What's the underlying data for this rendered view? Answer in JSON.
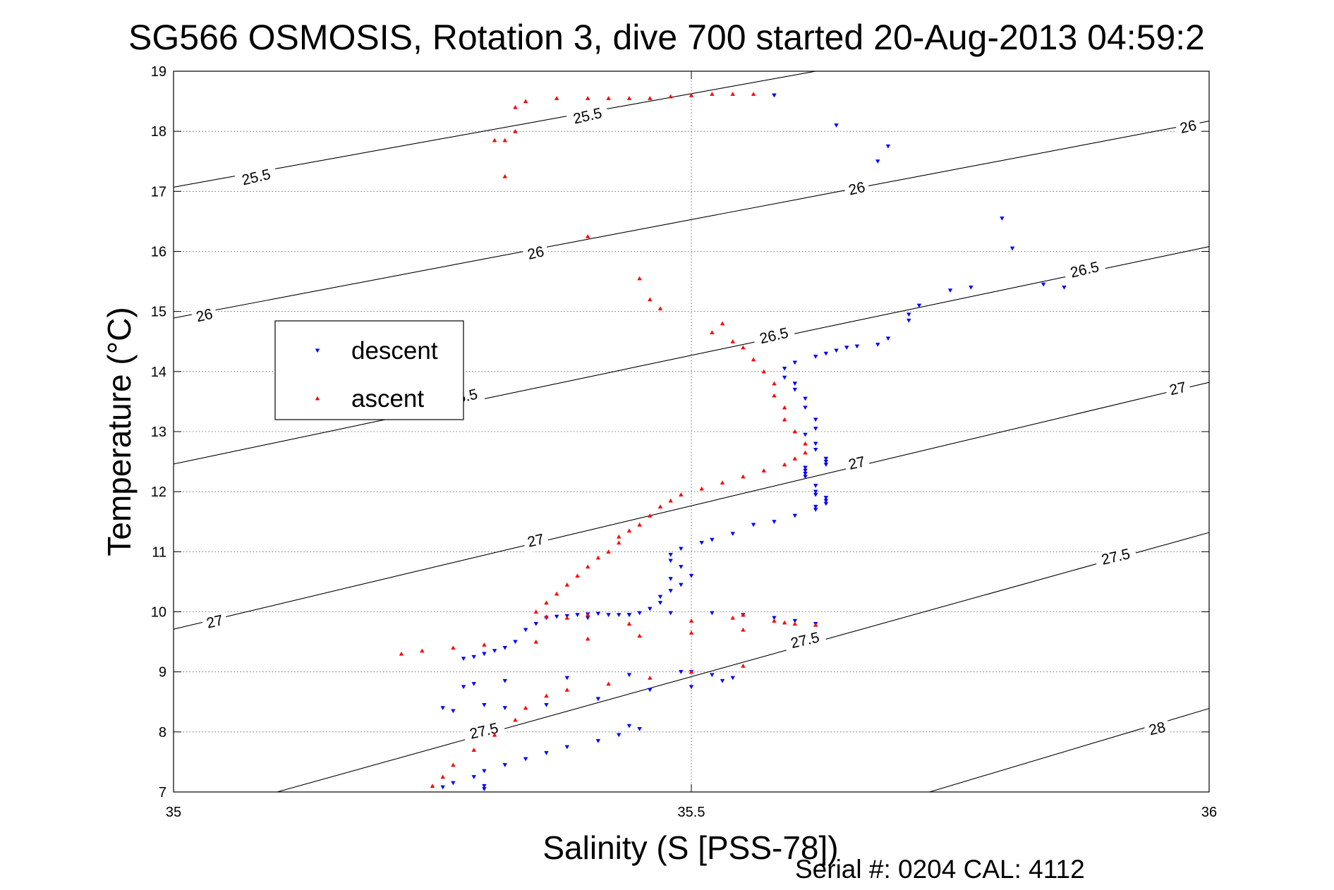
{
  "chart_data": {
    "type": "scatter",
    "title": "SG566 OSMOSIS, Rotation 3, dive 700 started 20-Aug-2013 04:59:2",
    "xlabel": "Salinity (S [PSS-78])",
    "ylabel": "Temperature (°C)",
    "xlim": [
      35,
      36
    ],
    "ylim": [
      7,
      19
    ],
    "xticks": [
      35,
      35.5,
      36
    ],
    "xtick_labels": [
      "35",
      "35.5",
      "36"
    ],
    "yticks": [
      7,
      8,
      9,
      10,
      11,
      12,
      13,
      14,
      15,
      16,
      17,
      18,
      19
    ],
    "ytick_labels": [
      "7",
      "8",
      "9",
      "10",
      "11",
      "12",
      "13",
      "14",
      "15",
      "16",
      "17",
      "18",
      "19"
    ],
    "grid": true,
    "legend_position": "upper-left",
    "footer": "Serial #: 0204  CAL: 4112",
    "density_contours": [
      {
        "label": "25.5",
        "x": [
          35.0,
          35.62
        ],
        "y": [
          17.07,
          19.0
        ]
      },
      {
        "label": "26",
        "x": [
          35.0,
          36.0
        ],
        "y": [
          14.89,
          18.17
        ]
      },
      {
        "label": "26.5",
        "x": [
          35.0,
          36.0
        ],
        "y": [
          12.46,
          16.08
        ]
      },
      {
        "label": "27",
        "x": [
          35.0,
          36.0
        ],
        "y": [
          9.71,
          13.82
        ]
      },
      {
        "label": "27.5",
        "x": [
          35.1,
          36.0
        ],
        "y": [
          7.0,
          11.32
        ]
      },
      {
        "label": "28",
        "x": [
          35.73,
          36.0
        ],
        "y": [
          7.0,
          8.39
        ]
      }
    ],
    "contour_labels": [
      {
        "text": "25.5",
        "x": 35.4,
        "y": 18.24
      },
      {
        "text": "25.5",
        "x": 35.08,
        "y": 17.22
      },
      {
        "text": "26",
        "x": 35.98,
        "y": 18.06
      },
      {
        "text": "26",
        "x": 35.66,
        "y": 17.03
      },
      {
        "text": "26",
        "x": 35.35,
        "y": 15.96
      },
      {
        "text": "26",
        "x": 35.03,
        "y": 14.92
      },
      {
        "text": "26.5",
        "x": 35.88,
        "y": 15.68
      },
      {
        "text": "26.5",
        "x": 35.58,
        "y": 14.58
      },
      {
        "text": "26.5",
        "x": 35.28,
        "y": 13.56
      },
      {
        "text": "27",
        "x": 35.97,
        "y": 13.7
      },
      {
        "text": "27",
        "x": 35.66,
        "y": 12.46
      },
      {
        "text": "27",
        "x": 35.35,
        "y": 11.17
      },
      {
        "text": "27",
        "x": 35.04,
        "y": 9.82
      },
      {
        "text": "27.5",
        "x": 35.91,
        "y": 10.9
      },
      {
        "text": "27.5",
        "x": 35.61,
        "y": 9.51
      },
      {
        "text": "27.5",
        "x": 35.3,
        "y": 8.0
      },
      {
        "text": "28",
        "x": 35.95,
        "y": 8.04
      }
    ],
    "series": [
      {
        "name": "descent",
        "color": "#0000ff",
        "marker": "triangle-down",
        "x": [
          35.58,
          35.58,
          35.58,
          35.64,
          35.69,
          35.68,
          35.8,
          35.81,
          35.84,
          35.86,
          35.77,
          35.75,
          35.72,
          35.71,
          35.71,
          35.69,
          35.68,
          35.66,
          35.65,
          35.64,
          35.63,
          35.62,
          35.6,
          35.59,
          35.59,
          35.6,
          35.6,
          35.61,
          35.61,
          35.62,
          35.62,
          35.61,
          35.62,
          35.62,
          35.63,
          35.63,
          35.63,
          35.61,
          35.61,
          35.61,
          35.61,
          35.62,
          35.62,
          35.62,
          35.63,
          35.63,
          35.63,
          35.62,
          35.62,
          35.6,
          35.58,
          35.56,
          35.54,
          35.52,
          35.51,
          35.49,
          35.48,
          35.48,
          35.49,
          35.5,
          35.48,
          35.49,
          35.48,
          35.47,
          35.47,
          35.46,
          35.45,
          35.44,
          35.43,
          35.42,
          35.41,
          35.4,
          35.39,
          35.38,
          35.37,
          35.36,
          35.35,
          35.34,
          35.33,
          35.32,
          35.31,
          35.3,
          35.29,
          35.28,
          35.4,
          35.44,
          35.48,
          35.52,
          35.55,
          35.58,
          35.6,
          35.62,
          35.5,
          35.44,
          35.38,
          35.32,
          35.29,
          35.28,
          35.3,
          35.26,
          35.27,
          35.49,
          35.52,
          35.54,
          35.53,
          35.5,
          35.46,
          35.41,
          35.36,
          35.32,
          35.44,
          35.45,
          35.43,
          35.41,
          35.38,
          35.36,
          35.34,
          35.32,
          35.3,
          35.29,
          35.27,
          35.26,
          35.3,
          35.3
        ],
        "y": [
          18.6,
          18.6,
          18.6,
          18.1,
          17.75,
          17.5,
          16.55,
          16.05,
          15.45,
          15.4,
          15.4,
          15.35,
          15.1,
          14.95,
          14.85,
          14.55,
          14.45,
          14.42,
          14.4,
          14.35,
          14.3,
          14.25,
          14.15,
          14.05,
          13.9,
          13.8,
          13.7,
          13.55,
          13.4,
          13.2,
          13.05,
          12.95,
          12.8,
          12.7,
          12.55,
          12.5,
          12.45,
          12.4,
          12.35,
          12.3,
          12.25,
          12.1,
          12.0,
          11.95,
          11.9,
          11.85,
          11.8,
          11.75,
          11.7,
          11.6,
          11.5,
          11.45,
          11.3,
          11.2,
          11.15,
          11.05,
          10.95,
          10.85,
          10.75,
          10.6,
          10.55,
          10.45,
          10.35,
          10.25,
          10.15,
          10.05,
          9.98,
          9.95,
          9.95,
          9.95,
          9.97,
          9.96,
          9.95,
          9.93,
          9.92,
          9.9,
          9.8,
          9.7,
          9.5,
          9.4,
          9.35,
          9.3,
          9.25,
          9.22,
          9.9,
          9.95,
          9.98,
          9.98,
          9.95,
          9.9,
          9.85,
          9.8,
          9.0,
          8.95,
          8.9,
          8.85,
          8.8,
          8.75,
          8.45,
          8.4,
          8.35,
          9.0,
          8.95,
          8.9,
          8.85,
          8.75,
          8.7,
          8.55,
          8.45,
          8.4,
          8.1,
          8.05,
          7.95,
          7.85,
          7.75,
          7.65,
          7.55,
          7.45,
          7.35,
          7.25,
          7.15,
          7.08,
          7.1,
          7.05
        ]
      },
      {
        "name": "ascent",
        "color": "#ff0000",
        "marker": "triangle-up",
        "x": [
          35.56,
          35.54,
          35.52,
          35.5,
          35.48,
          35.46,
          35.44,
          35.42,
          35.4,
          35.37,
          35.34,
          35.33,
          35.33,
          35.32,
          35.31,
          35.32,
          35.4,
          35.45,
          35.46,
          35.47,
          35.53,
          35.52,
          35.54,
          35.55,
          35.56,
          35.57,
          35.58,
          35.58,
          35.59,
          35.59,
          35.6,
          35.61,
          35.61,
          35.6,
          35.59,
          35.57,
          35.55,
          35.53,
          35.51,
          35.49,
          35.48,
          35.47,
          35.46,
          35.45,
          35.44,
          35.43,
          35.43,
          35.42,
          35.41,
          35.4,
          35.39,
          35.38,
          35.37,
          35.36,
          35.35,
          35.44,
          35.5,
          35.54,
          35.55,
          35.58,
          35.59,
          35.6,
          35.62,
          35.55,
          35.5,
          35.45,
          35.4,
          35.35,
          35.3,
          35.27,
          35.24,
          35.22,
          35.38,
          35.4,
          35.36,
          35.55,
          35.5,
          35.46,
          35.42,
          35.38,
          35.36,
          35.34,
          35.33,
          35.31,
          35.29,
          35.27,
          35.26,
          35.25
        ],
        "y": [
          18.62,
          18.62,
          18.62,
          18.6,
          18.58,
          18.55,
          18.55,
          18.55,
          18.55,
          18.55,
          18.5,
          18.4,
          18.0,
          17.85,
          17.85,
          17.25,
          16.25,
          15.55,
          15.2,
          15.05,
          14.8,
          14.65,
          14.5,
          14.4,
          14.2,
          14.0,
          13.8,
          13.6,
          13.4,
          13.2,
          13.0,
          12.8,
          12.65,
          12.55,
          12.45,
          12.35,
          12.25,
          12.15,
          12.05,
          11.95,
          11.85,
          11.75,
          11.6,
          11.45,
          11.35,
          11.25,
          11.15,
          11.0,
          10.9,
          10.75,
          10.6,
          10.45,
          10.3,
          10.15,
          10.0,
          9.8,
          9.85,
          9.9,
          9.95,
          9.85,
          9.82,
          9.8,
          9.78,
          9.7,
          9.65,
          9.6,
          9.55,
          9.5,
          9.45,
          9.4,
          9.35,
          9.3,
          9.9,
          9.95,
          9.92,
          9.1,
          9.0,
          8.9,
          8.8,
          8.7,
          8.6,
          8.4,
          8.2,
          7.95,
          7.7,
          7.45,
          7.25,
          7.1
        ]
      }
    ]
  }
}
